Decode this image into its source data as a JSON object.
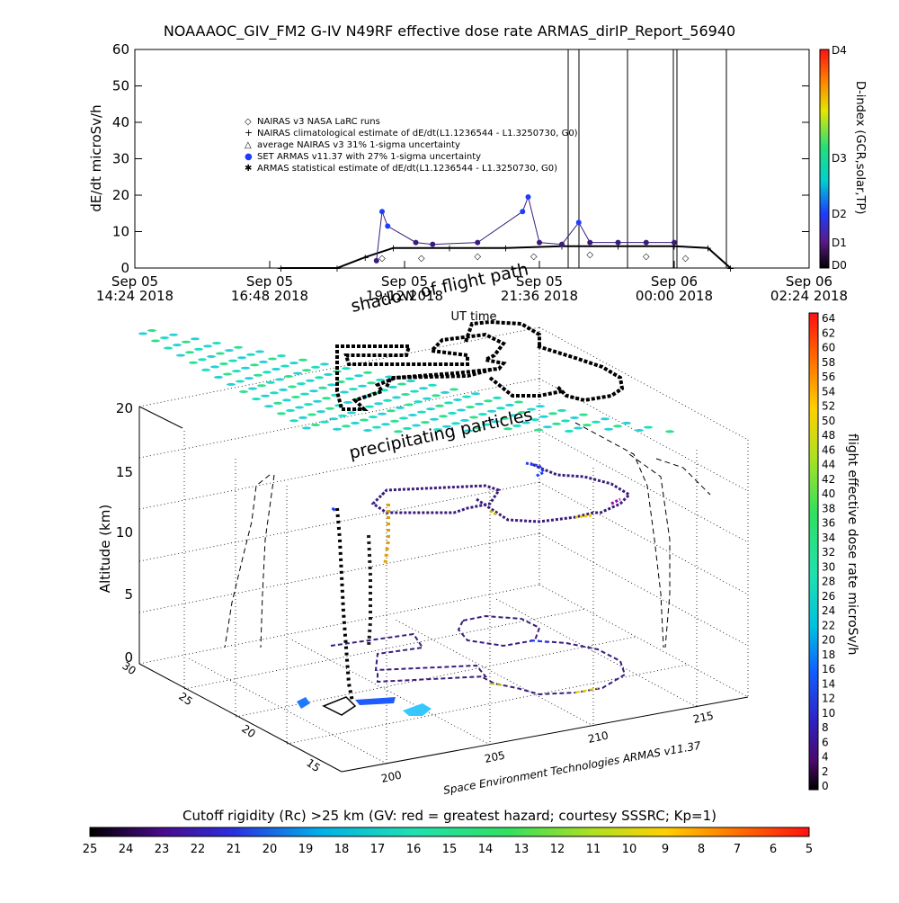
{
  "title": "NOAAAOC_GIV_FM2 G-IV    N49RF   effective dose rate ARMAS_dirIP_Report_56940",
  "top_chart": {
    "ylabel": "dE/dt microSv/h",
    "yticks": [
      "60",
      "50",
      "40",
      "30",
      "20",
      "10",
      "0"
    ],
    "xtick_dates": [
      "Sep 05",
      "Sep 05",
      "Sep 05",
      "Sep 05",
      "Sep 06",
      "Sep 06"
    ],
    "xtick_times": [
      "14:24 2018",
      "16:48 2018",
      "19:12 2018",
      "21:36 2018",
      "00:00 2018",
      "02:24 2018"
    ],
    "xlabel": "UT time",
    "legend": [
      {
        "symbol": "◇",
        "text": "NAIRAS v3 NASA LaRC runs"
      },
      {
        "symbol": "+",
        "text": "NAIRAS climatological estimate of dE/dt(L1.1236544 - L1.3250730, G0)"
      },
      {
        "symbol": "△",
        "text": "average NAIRAS v3 31% 1-sigma uncertainty"
      },
      {
        "symbol": "●",
        "text": "SET ARMAS v11.37 with 27% 1-sigma uncertainty"
      },
      {
        "symbol": "✱",
        "text": "ARMAS statistical estimate of dE/dt(L1.1236544 - L1.3250730, G0)"
      }
    ],
    "dindex": {
      "label": "D-index (GCR,solar,TP)",
      "ticks": [
        "D4",
        "D3",
        "D2",
        "D1",
        "D0"
      ]
    }
  },
  "chart_data": [
    {
      "type": "scatter",
      "title": "NOAAAOC_GIV_FM2 G-IV    N49RF   effective dose rate ARMAS_dirIP_Report_56940",
      "xlabel": "UT time",
      "ylabel": "dE/dt microSv/h",
      "ylim": [
        0,
        60
      ],
      "xlim_hours": [
        14.4,
        26.4
      ],
      "x_tick_labels": [
        "Sep 05 14:24 2018",
        "Sep 05 16:48 2018",
        "Sep 05 19:12 2018",
        "Sep 05 21:36 2018",
        "Sep 06 00:00 2018",
        "Sep 06 02:24 2018"
      ],
      "series": [
        {
          "name": "NAIRAS climatological estimate of dE/dt(L1.1236544 - L1.3250730, G0)",
          "marker": "+",
          "x_hours": [
            17.0,
            18.0,
            18.5,
            19.0,
            20.0,
            21.0,
            22.0,
            23.0,
            24.0,
            24.6,
            25.0
          ],
          "values": [
            0,
            0,
            3,
            5.5,
            5.5,
            5.5,
            6,
            6,
            6,
            5.5,
            0
          ]
        },
        {
          "name": "SET ARMAS v11.37 with 27% 1-sigma uncertainty",
          "marker": "●",
          "x_hours": [
            18.7,
            18.8,
            18.9,
            19.4,
            19.7,
            20.5,
            21.3,
            21.4,
            21.6,
            22.0,
            22.3,
            22.5,
            23.0,
            23.5,
            24.0
          ],
          "values": [
            2,
            15.5,
            11.5,
            7,
            6.5,
            7,
            15.5,
            19.5,
            7,
            6.5,
            12.5,
            7,
            7,
            7,
            7
          ]
        },
        {
          "name": "NAIRAS v3 NASA LaRC runs",
          "marker": "◇",
          "x_hours": [
            18.8,
            19.5,
            20.5,
            21.5,
            22.5,
            23.5,
            24.2
          ],
          "values": [
            3,
            3,
            3.5,
            3.5,
            4,
            3.5,
            3
          ]
        }
      ]
    },
    {
      "type": "scatter",
      "subtype": "3d-flight-track",
      "zlabel": "Altitude (km)",
      "zticks": [
        "20",
        "15",
        "10",
        "5",
        "0"
      ],
      "y_ticks": [
        "30",
        "25",
        "20",
        "15"
      ],
      "x_ticks": [
        "200",
        "205",
        "210",
        "215"
      ],
      "colorbar_label": "flight effective dose rate microSv/h",
      "colorbar_range": [
        0,
        64
      ],
      "annotations": [
        "shadow of flight path",
        "precipitating particles"
      ]
    }
  ],
  "colorbar_right": {
    "label": "flight effective dose rate microSv/h",
    "ticks": [
      "64",
      "62",
      "60",
      "58",
      "56",
      "54",
      "52",
      "50",
      "48",
      "46",
      "44",
      "42",
      "40",
      "38",
      "36",
      "34",
      "32",
      "30",
      "28",
      "26",
      "24",
      "22",
      "20",
      "18",
      "16",
      "14",
      "12",
      "10",
      "8",
      "6",
      "4",
      "2",
      "0"
    ]
  },
  "plot3d": {
    "zlabel": "Altitude (km)",
    "zticks": [
      "20",
      "15",
      "10",
      "5",
      "0"
    ],
    "yticks": [
      "30",
      "25",
      "20",
      "15"
    ],
    "xticks": [
      "200",
      "205",
      "210",
      "215"
    ],
    "annot_shadow": "shadow of flight path",
    "annot_precip": "precipitating particles",
    "credit": "Space Environment Technologies ARMAS v11.37"
  },
  "bottom_bar": {
    "label": "Cutoff rigidity (Rc) >25 km (GV: red = greatest hazard; courtesy SSSRC; Kp=1)",
    "ticks": [
      "25",
      "24",
      "23",
      "22",
      "21",
      "20",
      "19",
      "18",
      "17",
      "16",
      "15",
      "14",
      "13",
      "12",
      "11",
      "10",
      "9",
      "8",
      "7",
      "6",
      "5"
    ]
  },
  "colors": {
    "armas_marker": "#3a1d7a",
    "armas_bright": "#1e3cff",
    "nairas_grid": "#2de0a8",
    "track": "#000000"
  }
}
